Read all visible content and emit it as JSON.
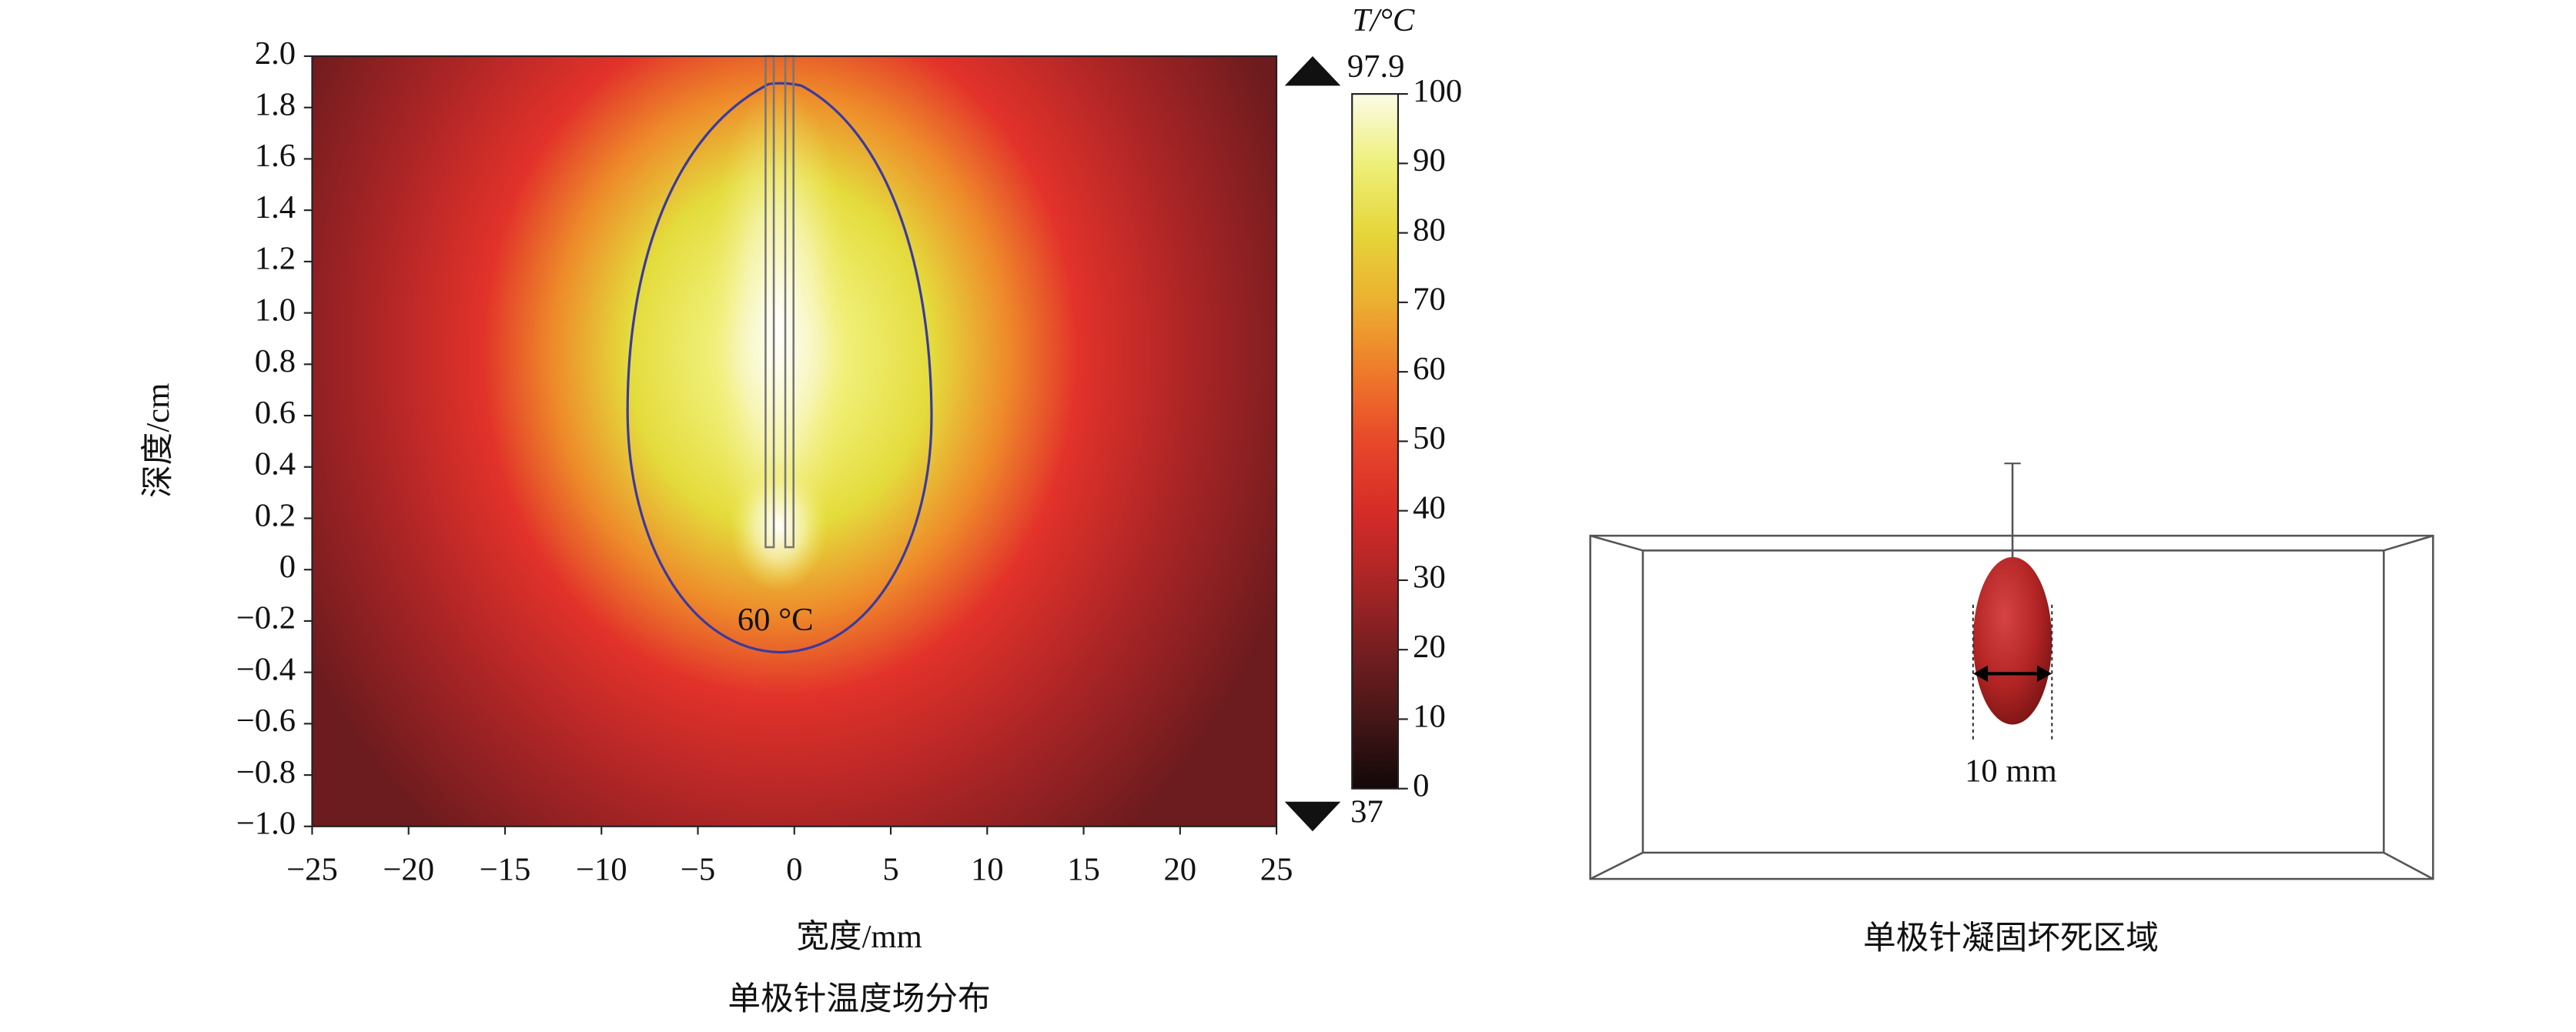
{
  "chart_data": [
    {
      "type": "heatmap",
      "title": "单极针温度场分布",
      "xlabel": "宽度/mm",
      "ylabel": "深度/cm",
      "xlim": [
        -25,
        25
      ],
      "ylim": [
        -1.0,
        2.0
      ],
      "xticks": [
        {
          "value": -25,
          "label": "−25"
        },
        {
          "value": -20,
          "label": "−20"
        },
        {
          "value": -15,
          "label": "−15"
        },
        {
          "value": -10,
          "label": "−10"
        },
        {
          "value": -5,
          "label": "−5"
        },
        0,
        5,
        10,
        15,
        20,
        25
      ],
      "yticks": [
        {
          "value": 2.0,
          "label": "2.0"
        },
        {
          "value": 1.8,
          "label": "1.8"
        },
        {
          "value": 1.6,
          "label": "1.6"
        },
        {
          "value": 1.4,
          "label": "1.4"
        },
        {
          "value": 1.2,
          "label": "1.2"
        },
        {
          "value": 1.0,
          "label": "1.0"
        },
        {
          "value": 0.8,
          "label": "0.8"
        },
        {
          "value": 0.6,
          "label": "0.6"
        },
        {
          "value": 0.4,
          "label": "0.4"
        },
        {
          "value": 0.2,
          "label": "0.2"
        },
        0,
        {
          "value": -0.2,
          "label": "−0.2"
        },
        {
          "value": -0.4,
          "label": "−0.4"
        },
        {
          "value": -0.6,
          "label": "−0.6"
        },
        {
          "value": -0.8,
          "label": "−0.8"
        },
        {
          "value": -1.0,
          "label": "−1.0"
        }
      ],
      "colorbar_title": "T/°C",
      "clim": [
        0,
        100
      ],
      "cticks": [
        0,
        10,
        20,
        30,
        40,
        50,
        60,
        70,
        80,
        90,
        100
      ],
      "max": 97.9,
      "min": 37,
      "annotation": "60 °C"
    },
    {
      "type": "render",
      "title": "单极针凝固坏死区域",
      "annotation": "10 mm"
    }
  ]
}
